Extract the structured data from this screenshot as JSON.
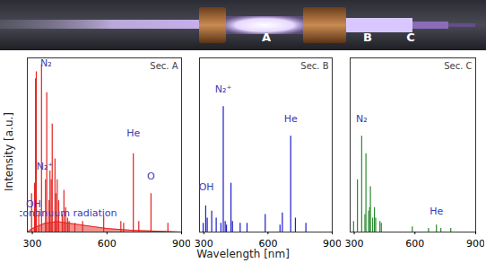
{
  "photo": {
    "labels": [
      "A",
      "B",
      "C"
    ]
  },
  "chart_data": [
    {
      "type": "bar",
      "title": "Sec. A",
      "y_label": "Intensity [a.u.]",
      "color": "#e3231e",
      "x": [
        297,
        309,
        313,
        316,
        326,
        337,
        353,
        358,
        367,
        371,
        376,
        380,
        391,
        394,
        400,
        406,
        420,
        427,
        434,
        442,
        448,
        471,
        502,
        587,
        656,
        667,
        706,
        728,
        777,
        845
      ],
      "values": [
        22,
        28,
        88,
        92,
        12,
        96,
        30,
        80,
        18,
        35,
        30,
        62,
        42,
        22,
        30,
        18,
        10,
        24,
        14,
        8,
        6,
        5,
        6,
        9,
        6,
        5,
        45,
        6,
        22,
        5
      ],
      "continuum": {
        "x": [
          280,
          300,
          350,
          400,
          450,
          500,
          550,
          600,
          700,
          800,
          900
        ],
        "values": [
          0,
          2,
          5,
          6,
          5,
          4,
          3,
          2,
          1,
          0.5,
          0
        ]
      },
      "xlim": [
        280,
        900
      ],
      "ylim": [
        0,
        100
      ],
      "xticks": [
        300,
        600,
        900
      ],
      "yticks": [],
      "tick_labels": "x",
      "annotations": [
        {
          "text": "N₂",
          "x": 355,
          "y": 95,
          "color": "#3b3bb0"
        },
        {
          "text": "N₂⁺",
          "x": 350,
          "y": 36,
          "color": "#3b3bb0"
        },
        {
          "text": "OH",
          "x": 305,
          "y": 14,
          "color": "#3b3bb0"
        },
        {
          "text": "continuum radiation",
          "x": 440,
          "y": 9,
          "color": "#3b3bb0"
        },
        {
          "text": "He",
          "x": 706,
          "y": 55,
          "color": "#3b3bb0"
        },
        {
          "text": "O",
          "x": 777,
          "y": 30,
          "color": "#3b3bb0"
        }
      ]
    },
    {
      "type": "bar",
      "title": "Sec. B",
      "x_label": "Wavelength [nm]",
      "color": "#1c1cc8",
      "x": [
        297,
        309,
        316,
        337,
        358,
        380,
        391,
        400,
        406,
        427,
        434,
        470,
        502,
        587,
        656,
        667,
        706,
        728,
        777
      ],
      "values": [
        5,
        15,
        8,
        12,
        8,
        5,
        72,
        6,
        4,
        28,
        6,
        5,
        5,
        10,
        4,
        11,
        55,
        8,
        5
      ],
      "xlim": [
        280,
        900
      ],
      "ylim": [
        0,
        100
      ],
      "xticks": [
        300,
        600,
        900
      ],
      "yticks": [],
      "tick_labels": "x",
      "annotations": [
        {
          "text": "OH",
          "x": 312,
          "y": 24,
          "color": "#3b3bb0"
        },
        {
          "text": "N₂⁺",
          "x": 391,
          "y": 80,
          "color": "#3b3bb0"
        },
        {
          "text": "He",
          "x": 706,
          "y": 63,
          "color": "#3b3bb0"
        }
      ]
    },
    {
      "type": "bar",
      "title": "Sec. C",
      "color": "#2a8a2e",
      "x": [
        297,
        316,
        337,
        353,
        358,
        371,
        376,
        380,
        391,
        400,
        406,
        427,
        434,
        587,
        667,
        706,
        728,
        777
      ],
      "values": [
        6,
        30,
        55,
        10,
        45,
        12,
        14,
        26,
        8,
        14,
        8,
        6,
        5,
        3,
        2,
        4,
        2,
        2
      ],
      "xlim": [
        280,
        900
      ],
      "ylim": [
        0,
        100
      ],
      "xticks": [
        300,
        600,
        900
      ],
      "yticks": [],
      "tick_labels": "x",
      "annotations": [
        {
          "text": "N₂",
          "x": 337,
          "y": 63,
          "color": "#3b3bb0"
        },
        {
          "text": "He",
          "x": 706,
          "y": 10,
          "color": "#3b3bb0"
        }
      ]
    }
  ]
}
